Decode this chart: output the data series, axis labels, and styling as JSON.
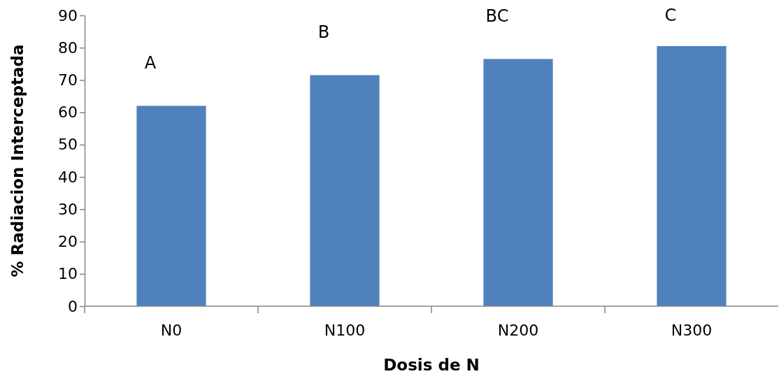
{
  "chart_data": {
    "type": "bar",
    "xlabel": "Dosis de N",
    "ylabel": "% Radiacion Interceptada",
    "categories": [
      "N0",
      "N100",
      "N200",
      "N300"
    ],
    "values": [
      62,
      71.5,
      76.5,
      80.5
    ],
    "color": "#4f81bd",
    "ylim": [
      0,
      90
    ],
    "yticks": [
      0,
      10,
      20,
      30,
      40,
      50,
      60,
      70,
      80,
      90
    ],
    "grid": false,
    "annotations": [
      "A",
      "B",
      "BC",
      "C"
    ]
  }
}
